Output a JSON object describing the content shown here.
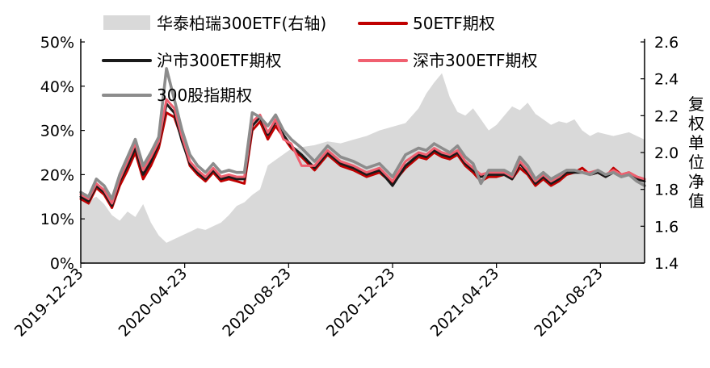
{
  "chart_data": {
    "type": "line",
    "title": "",
    "xlabel": "",
    "ylabel": "",
    "y2label": "复权单位净值",
    "ylim": [
      0,
      50
    ],
    "y2lim": [
      1.4,
      2.6
    ],
    "y_ticks": [
      "0%",
      "10%",
      "20%",
      "30%",
      "40%",
      "50%"
    ],
    "y2_ticks": [
      "1.4",
      "1.6",
      "1.8",
      "2.0",
      "2.2",
      "2.4",
      "2.6"
    ],
    "x_ticks": [
      "2019-12-23",
      "2020-04-23",
      "2020-08-23",
      "2020-12-23",
      "2021-04-23",
      "2021-08-23"
    ],
    "x_tick_positions": [
      0,
      4,
      8,
      12,
      16,
      20
    ],
    "x_range": [
      0,
      21.7
    ],
    "x_unit": "months since 2019-12-23",
    "series": [
      {
        "name": "华泰柏瑞300ETF(右轴)",
        "type": "area",
        "axis": "right",
        "color": "#d9d9d9",
        "x": [
          0,
          0.3,
          0.6,
          0.9,
          1.2,
          1.5,
          1.8,
          2.1,
          2.4,
          2.7,
          3.0,
          3.3,
          3.6,
          3.9,
          4.2,
          4.5,
          4.8,
          5.1,
          5.4,
          5.7,
          6.0,
          6.3,
          6.6,
          6.9,
          7.2,
          7.5,
          7.8,
          8.1,
          8.5,
          9.0,
          9.5,
          10.0,
          10.5,
          11.0,
          11.5,
          12.0,
          12.5,
          13.0,
          13.3,
          13.6,
          13.9,
          14.2,
          14.5,
          14.8,
          15.1,
          15.4,
          15.7,
          16.0,
          16.3,
          16.6,
          16.9,
          17.2,
          17.5,
          17.8,
          18.1,
          18.4,
          18.7,
          19.0,
          19.3,
          19.6,
          19.9,
          20.2,
          20.5,
          20.8,
          21.1,
          21.4,
          21.7
        ],
        "values": [
          1.75,
          1.74,
          1.76,
          1.72,
          1.66,
          1.63,
          1.68,
          1.65,
          1.72,
          1.62,
          1.55,
          1.51,
          1.53,
          1.55,
          1.57,
          1.59,
          1.58,
          1.6,
          1.62,
          1.66,
          1.71,
          1.73,
          1.77,
          1.8,
          1.93,
          1.96,
          1.99,
          2.02,
          2.03,
          2.04,
          2.06,
          2.05,
          2.07,
          2.09,
          2.12,
          2.14,
          2.16,
          2.24,
          2.32,
          2.38,
          2.43,
          2.3,
          2.22,
          2.2,
          2.24,
          2.18,
          2.12,
          2.15,
          2.2,
          2.25,
          2.23,
          2.27,
          2.21,
          2.18,
          2.15,
          2.17,
          2.16,
          2.18,
          2.12,
          2.09,
          2.11,
          2.1,
          2.09,
          2.1,
          2.11,
          2.09,
          2.07
        ]
      },
      {
        "name": "50ETF期权",
        "axis": "left",
        "color": "#c00000",
        "x": [
          0,
          0.3,
          0.6,
          0.9,
          1.2,
          1.5,
          1.8,
          2.1,
          2.4,
          2.7,
          3.0,
          3.3,
          3.6,
          3.9,
          4.2,
          4.5,
          4.8,
          5.1,
          5.4,
          5.7,
          6.0,
          6.3,
          6.6,
          6.9,
          7.2,
          7.5,
          7.8,
          8.1,
          8.5,
          9.0,
          9.5,
          10.0,
          10.5,
          11.0,
          11.5,
          12.0,
          12.5,
          13.0,
          13.3,
          13.6,
          13.9,
          14.2,
          14.5,
          14.8,
          15.1,
          15.4,
          15.7,
          16.0,
          16.3,
          16.6,
          16.9,
          17.2,
          17.5,
          17.8,
          18.1,
          18.4,
          18.7,
          19.0,
          19.3,
          19.6,
          19.9,
          20.2,
          20.5,
          20.8,
          21.1,
          21.4,
          21.7
        ],
        "values": [
          14.5,
          13.5,
          17.0,
          15.5,
          12.5,
          17.5,
          21.0,
          25.0,
          19.0,
          22.0,
          26.0,
          34.0,
          33.0,
          28.0,
          22.0,
          20.0,
          18.5,
          20.5,
          18.5,
          19.0,
          18.5,
          18.0,
          30.0,
          32.0,
          28.0,
          31.0,
          28.5,
          26.0,
          24.0,
          21.0,
          24.5,
          22.0,
          21.0,
          19.5,
          20.5,
          18.0,
          21.5,
          24.0,
          23.5,
          25.0,
          24.0,
          23.5,
          24.5,
          22.0,
          20.5,
          18.5,
          19.5,
          19.5,
          20.0,
          19.0,
          21.5,
          20.0,
          17.5,
          19.0,
          17.5,
          18.5,
          20.0,
          20.5,
          21.5,
          20.0,
          20.5,
          19.5,
          21.5,
          20.0,
          20.5,
          19.5,
          19.0
        ]
      },
      {
        "name": "沪市300ETF期权",
        "axis": "left",
        "color": "#1a1a1a",
        "x": [
          0,
          0.3,
          0.6,
          0.9,
          1.2,
          1.5,
          1.8,
          2.1,
          2.4,
          2.7,
          3.0,
          3.3,
          3.6,
          3.9,
          4.2,
          4.5,
          4.8,
          5.1,
          5.4,
          5.7,
          6.0,
          6.3,
          6.6,
          6.9,
          7.2,
          7.5,
          7.8,
          8.1,
          8.5,
          9.0,
          9.5,
          10.0,
          10.5,
          11.0,
          11.5,
          12.0,
          12.5,
          13.0,
          13.3,
          13.6,
          13.9,
          14.2,
          14.5,
          14.8,
          15.1,
          15.4,
          15.7,
          16.0,
          16.3,
          16.6,
          16.9,
          17.2,
          17.5,
          17.8,
          18.1,
          18.4,
          18.7,
          19.0,
          19.3,
          19.6,
          19.9,
          20.2,
          20.5,
          20.8,
          21.1,
          21.4,
          21.7
        ],
        "values": [
          15.0,
          14.0,
          17.5,
          16.0,
          13.0,
          18.5,
          22.0,
          26.0,
          20.0,
          23.0,
          27.0,
          36.0,
          34.0,
          27.5,
          22.5,
          20.5,
          19.0,
          21.0,
          19.0,
          19.5,
          19.0,
          19.0,
          31.0,
          33.0,
          29.0,
          32.0,
          29.0,
          26.5,
          24.5,
          21.5,
          25.0,
          22.5,
          21.5,
          20.0,
          21.0,
          17.5,
          22.0,
          24.5,
          24.0,
          25.5,
          24.5,
          24.0,
          25.0,
          22.5,
          21.0,
          19.5,
          20.0,
          20.0,
          20.0,
          19.0,
          22.5,
          20.5,
          18.0,
          19.5,
          18.0,
          19.0,
          20.5,
          20.5,
          20.5,
          20.0,
          20.5,
          19.5,
          20.5,
          19.5,
          20.0,
          19.0,
          18.5
        ]
      },
      {
        "name": "深市300ETF期权",
        "axis": "left",
        "color": "#f06070",
        "x": [
          0,
          0.3,
          0.6,
          0.9,
          1.2,
          1.5,
          1.8,
          2.1,
          2.4,
          2.7,
          3.0,
          3.3,
          3.6,
          3.9,
          4.2,
          4.5,
          4.8,
          5.1,
          5.4,
          5.7,
          6.0,
          6.3,
          6.6,
          6.9,
          7.2,
          7.5,
          7.8,
          8.1,
          8.5,
          9.0,
          9.5,
          10.0,
          10.5,
          11.0,
          11.5,
          12.0,
          12.5,
          13.0,
          13.3,
          13.6,
          13.9,
          14.2,
          14.5,
          14.8,
          15.1,
          15.4,
          15.7,
          16.0,
          16.3,
          16.6,
          16.9,
          17.2,
          17.5,
          17.8,
          18.1,
          18.4,
          18.7,
          19.0,
          19.3,
          19.6,
          19.9,
          20.2,
          20.5,
          20.8,
          21.1,
          21.4,
          21.7
        ],
        "values": [
          15.5,
          14.5,
          18.0,
          16.5,
          13.5,
          19.0,
          23.0,
          27.0,
          21.0,
          24.0,
          27.5,
          37.0,
          35.0,
          28.5,
          23.0,
          21.0,
          19.5,
          21.5,
          19.5,
          20.0,
          19.5,
          19.5,
          32.0,
          33.5,
          29.5,
          32.5,
          28.0,
          27.0,
          22.0,
          22.0,
          25.5,
          23.0,
          22.0,
          20.5,
          21.5,
          18.5,
          23.0,
          25.0,
          24.5,
          26.0,
          25.0,
          24.5,
          25.5,
          23.0,
          21.5,
          20.0,
          20.5,
          20.5,
          20.5,
          19.5,
          23.0,
          21.0,
          18.5,
          20.0,
          18.5,
          19.5,
          21.0,
          21.0,
          20.5,
          20.5,
          21.0,
          20.0,
          21.0,
          20.0,
          20.5,
          19.5,
          19.0
        ]
      },
      {
        "name": "300股指期权",
        "axis": "left",
        "color": "#8c8c8c",
        "x": [
          0,
          0.3,
          0.6,
          0.9,
          1.2,
          1.5,
          1.8,
          2.1,
          2.4,
          2.7,
          3.0,
          3.3,
          3.6,
          3.9,
          4.2,
          4.5,
          4.8,
          5.1,
          5.4,
          5.7,
          6.0,
          6.3,
          6.6,
          6.9,
          7.2,
          7.5,
          7.8,
          8.1,
          8.5,
          9.0,
          9.5,
          10.0,
          10.5,
          11.0,
          11.5,
          12.0,
          12.5,
          13.0,
          13.3,
          13.6,
          13.9,
          14.2,
          14.5,
          14.8,
          15.1,
          15.4,
          15.7,
          16.0,
          16.3,
          16.6,
          16.9,
          17.2,
          17.5,
          17.8,
          18.1,
          18.4,
          18.7,
          19.0,
          19.3,
          19.6,
          19.9,
          20.2,
          20.5,
          20.8,
          21.1,
          21.4,
          21.7
        ],
        "values": [
          16.0,
          15.0,
          19.0,
          17.5,
          14.5,
          20.0,
          24.0,
          28.0,
          22.0,
          25.0,
          28.5,
          44.0,
          37.0,
          30.0,
          24.5,
          22.0,
          20.5,
          22.5,
          20.5,
          21.0,
          20.5,
          20.5,
          34.0,
          33.0,
          31.0,
          33.5,
          30.0,
          28.0,
          26.0,
          23.0,
          26.5,
          24.0,
          23.0,
          21.5,
          22.5,
          19.5,
          24.5,
          26.0,
          25.5,
          27.0,
          26.0,
          25.0,
          26.5,
          24.0,
          22.5,
          18.0,
          21.0,
          21.0,
          21.0,
          20.0,
          24.0,
          22.0,
          19.0,
          20.5,
          19.0,
          20.0,
          21.0,
          21.0,
          20.5,
          20.0,
          21.0,
          20.0,
          20.5,
          19.5,
          20.0,
          18.5,
          17.5
        ]
      }
    ],
    "legend": [
      {
        "label": "华泰柏瑞300ETF(右轴)",
        "kind": "area",
        "color": "#d9d9d9"
      },
      {
        "label": "50ETF期权",
        "kind": "line",
        "color": "#c00000"
      },
      {
        "label": "沪市300ETF期权",
        "kind": "line",
        "color": "#1a1a1a"
      },
      {
        "label": "深市300ETF期权",
        "kind": "line",
        "color": "#f06070"
      },
      {
        "label": "300股指期权",
        "kind": "line",
        "color": "#8c8c8c"
      }
    ],
    "legend_placement": "top"
  }
}
